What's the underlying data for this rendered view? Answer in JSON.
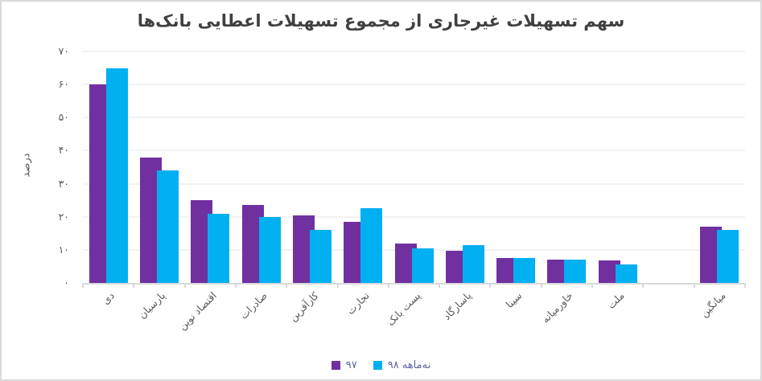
{
  "title": "سهم تسهیلات غیرجاری از مجموع تسهیلات اعطایی بانک‌ها",
  "colors": {
    "series_97": "#7030a0",
    "series_98": "#00b0f0",
    "gridline": "#f2f2f2",
    "axis_line": "#d9d9d9",
    "title_text": "#404040",
    "axis_text": "#595959",
    "legend_text": "#5d62a0",
    "frame_border": "#d9d9d9"
  },
  "chart_data": {
    "type": "bar",
    "title": "سهم تسهیلات غیرجاری از مجموع تسهیلات اعطایی بانک‌ها",
    "xlabel": "",
    "ylabel": "درصد",
    "ylim": [
      0,
      70
    ],
    "grid": true,
    "legend_position": "bottom",
    "categories": [
      "دی",
      "پارسیان",
      "اقتصاد نوین",
      "صادرات",
      "کارآفرین",
      "تجارت",
      "پست بانک",
      "پاسارگاد",
      "سینا",
      "خاورمیانه",
      "ملت",
      "",
      "میانگین"
    ],
    "series": [
      {
        "name": "۹۷",
        "color": "#7030a0",
        "values": [
          60,
          38,
          25,
          23.5,
          20.5,
          18.5,
          12,
          9.7,
          7.5,
          7,
          6.7,
          null,
          17
        ]
      },
      {
        "name": "نه‌ماهه ۹۸",
        "color": "#00b0f0",
        "values": [
          65,
          34,
          21,
          20,
          16,
          22.5,
          10.5,
          11.5,
          7.5,
          7,
          5.5,
          null,
          16
        ]
      }
    ],
    "yticks": {
      "values": [
        0,
        10,
        20,
        30,
        40,
        50,
        60,
        70
      ],
      "labels": [
        "۰",
        "۱۰",
        "۲۰",
        "۳۰",
        "۴۰",
        "۵۰",
        "۶۰",
        "۷۰"
      ]
    }
  },
  "legend": {
    "items": [
      {
        "label": "۹۷",
        "color": "#7030a0"
      },
      {
        "label": "نه‌ماهه ۹۸",
        "color": "#00b0f0"
      }
    ]
  }
}
